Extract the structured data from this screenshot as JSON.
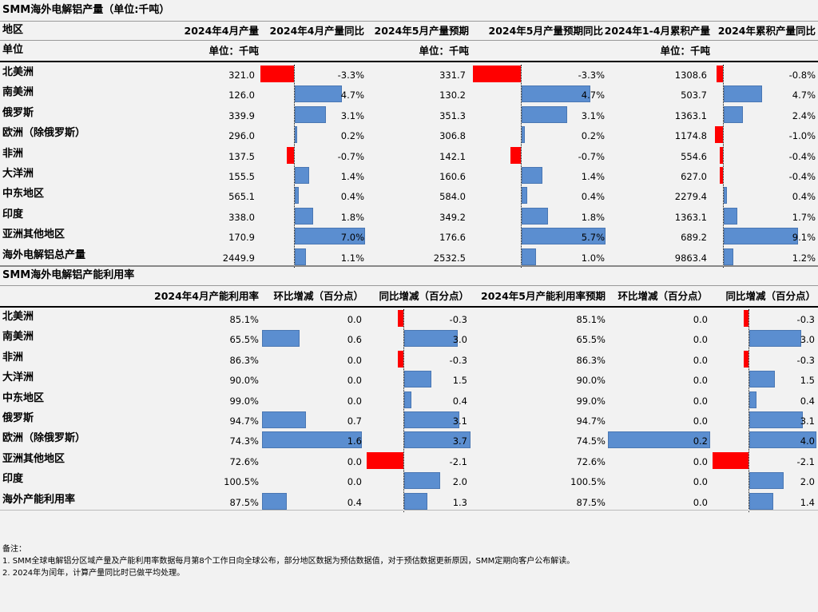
{
  "title1": "SMM海外电解铝产量（单位:千吨）",
  "header1": {
    "region": "地区",
    "c1": "2024年4月产量",
    "c2": "2024年4月产量同比",
    "c3": "2024年5月产量预期",
    "c4": "2024年5月产量预期同比",
    "c5": "2024年1-4月累积产量",
    "c6": "2024年累积产量同比"
  },
  "unit_row": {
    "label": "单位",
    "u1": "单位：千吨",
    "u3": "单位：千吨",
    "u5": "单位：千吨"
  },
  "table1": [
    {
      "region": "北美洲",
      "apr": "321.0",
      "apr_yoy": "-3.3%",
      "apr_yoy_v": -3.3,
      "may": "331.7",
      "may_yoy": "-3.3%",
      "may_yoy_v": -3.3,
      "cum": "1308.6",
      "cum_yoy": "-0.8%",
      "cum_yoy_v": -0.8
    },
    {
      "region": "南美洲",
      "apr": "126.0",
      "apr_yoy": "4.7%",
      "apr_yoy_v": 4.7,
      "may": "130.2",
      "may_yoy": "4.7%",
      "may_yoy_v": 4.7,
      "cum": "503.7",
      "cum_yoy": "4.7%",
      "cum_yoy_v": 4.7
    },
    {
      "region": "俄罗斯",
      "apr": "339.9",
      "apr_yoy": "3.1%",
      "apr_yoy_v": 3.1,
      "may": "351.3",
      "may_yoy": "3.1%",
      "may_yoy_v": 3.1,
      "cum": "1363.1",
      "cum_yoy": "2.4%",
      "cum_yoy_v": 2.4
    },
    {
      "region": "欧洲（除俄罗斯）",
      "apr": "296.0",
      "apr_yoy": "0.2%",
      "apr_yoy_v": 0.2,
      "may": "306.8",
      "may_yoy": "0.2%",
      "may_yoy_v": 0.2,
      "cum": "1174.8",
      "cum_yoy": "-1.0%",
      "cum_yoy_v": -1.0
    },
    {
      "region": "非洲",
      "apr": "137.5",
      "apr_yoy": "-0.7%",
      "apr_yoy_v": -0.7,
      "may": "142.1",
      "may_yoy": "-0.7%",
      "may_yoy_v": -0.7,
      "cum": "554.6",
      "cum_yoy": "-0.4%",
      "cum_yoy_v": -0.4
    },
    {
      "region": "大洋洲",
      "apr": "155.5",
      "apr_yoy": "1.4%",
      "apr_yoy_v": 1.4,
      "may": "160.6",
      "may_yoy": "1.4%",
      "may_yoy_v": 1.4,
      "cum": "627.0",
      "cum_yoy": "-0.4%",
      "cum_yoy_v": -0.4
    },
    {
      "region": "中东地区",
      "apr": "565.1",
      "apr_yoy": "0.4%",
      "apr_yoy_v": 0.4,
      "may": "584.0",
      "may_yoy": "0.4%",
      "may_yoy_v": 0.4,
      "cum": "2279.4",
      "cum_yoy": "0.4%",
      "cum_yoy_v": 0.4
    },
    {
      "region": "印度",
      "apr": "338.0",
      "apr_yoy": "1.8%",
      "apr_yoy_v": 1.8,
      "may": "349.2",
      "may_yoy": "1.8%",
      "may_yoy_v": 1.8,
      "cum": "1363.1",
      "cum_yoy": "1.7%",
      "cum_yoy_v": 1.7
    },
    {
      "region": "亚洲其他地区",
      "apr": "170.9",
      "apr_yoy": "7.0%",
      "apr_yoy_v": 7.0,
      "may": "176.6",
      "may_yoy": "5.7%",
      "may_yoy_v": 5.7,
      "cum": "689.2",
      "cum_yoy": "9.1%",
      "cum_yoy_v": 9.1
    },
    {
      "region": "海外电解铝总产量",
      "apr": "2449.9",
      "apr_yoy": "1.1%",
      "apr_yoy_v": 1.1,
      "may": "2532.5",
      "may_yoy": "1.0%",
      "may_yoy_v": 1.0,
      "cum": "9863.4",
      "cum_yoy": "1.2%",
      "cum_yoy_v": 1.2
    }
  ],
  "title2": "SMM海外电解铝产能利用率",
  "header2": {
    "c1": "2024年4月产能利用率",
    "c2": "环比增减（百分点）",
    "c3": "同比增减（百分点）",
    "c4": "2024年5月产能利用率预期",
    "c5": "环比增减（百分点）",
    "c6": "同比增减（百分点）"
  },
  "table2": [
    {
      "region": "北美洲",
      "apr": "85.1%",
      "apr_mom": "0.0",
      "apr_mom_v": 0.0,
      "apr_yoy": "-0.3",
      "apr_yoy_v": -0.3,
      "may": "85.1%",
      "may_mom": "0.0",
      "may_mom_v": 0.0,
      "may_yoy": "-0.3",
      "may_yoy_v": -0.3
    },
    {
      "region": "南美洲",
      "apr": "65.5%",
      "apr_mom": "0.6",
      "apr_mom_v": 0.6,
      "apr_yoy": "3.0",
      "apr_yoy_v": 3.0,
      "may": "65.5%",
      "may_mom": "0.0",
      "may_mom_v": 0.0,
      "may_yoy": "3.0",
      "may_yoy_v": 3.0
    },
    {
      "region": "非洲",
      "apr": "86.3%",
      "apr_mom": "0.0",
      "apr_mom_v": 0.0,
      "apr_yoy": "-0.3",
      "apr_yoy_v": -0.3,
      "may": "86.3%",
      "may_mom": "0.0",
      "may_mom_v": 0.0,
      "may_yoy": "-0.3",
      "may_yoy_v": -0.3
    },
    {
      "region": "大洋洲",
      "apr": "90.0%",
      "apr_mom": "0.0",
      "apr_mom_v": 0.0,
      "apr_yoy": "1.5",
      "apr_yoy_v": 1.5,
      "may": "90.0%",
      "may_mom": "0.0",
      "may_mom_v": 0.0,
      "may_yoy": "1.5",
      "may_yoy_v": 1.5
    },
    {
      "region": "中东地区",
      "apr": "99.0%",
      "apr_mom": "0.0",
      "apr_mom_v": 0.0,
      "apr_yoy": "0.4",
      "apr_yoy_v": 0.4,
      "may": "99.0%",
      "may_mom": "0.0",
      "may_mom_v": 0.0,
      "may_yoy": "0.4",
      "may_yoy_v": 0.4
    },
    {
      "region": "俄罗斯",
      "apr": "94.7%",
      "apr_mom": "0.7",
      "apr_mom_v": 0.7,
      "apr_yoy": "3.1",
      "apr_yoy_v": 3.1,
      "may": "94.7%",
      "may_mom": "0.0",
      "may_mom_v": 0.0,
      "may_yoy": "3.1",
      "may_yoy_v": 3.1
    },
    {
      "region": "欧洲（除俄罗斯）",
      "apr": "74.3%",
      "apr_mom": "1.6",
      "apr_mom_v": 1.6,
      "apr_yoy": "3.7",
      "apr_yoy_v": 3.7,
      "may": "74.5%",
      "may_mom": "0.2",
      "may_mom_v": 0.2,
      "may_yoy": "4.0",
      "may_yoy_v": 4.0
    },
    {
      "region": "亚洲其他地区",
      "apr": "72.6%",
      "apr_mom": "0.0",
      "apr_mom_v": 0.0,
      "apr_yoy": "-2.1",
      "apr_yoy_v": -2.1,
      "may": "72.6%",
      "may_mom": "0.0",
      "may_mom_v": 0.0,
      "may_yoy": "-2.1",
      "may_yoy_v": -2.1
    },
    {
      "region": "印度",
      "apr": "100.5%",
      "apr_mom": "0.0",
      "apr_mom_v": 0.0,
      "apr_yoy": "2.0",
      "apr_yoy_v": 2.0,
      "may": "100.5%",
      "may_mom": "0.0",
      "may_mom_v": 0.0,
      "may_yoy": "2.0",
      "may_yoy_v": 2.0
    },
    {
      "region": "海外产能利用率",
      "apr": "87.5%",
      "apr_mom": "0.4",
      "apr_mom_v": 0.4,
      "apr_yoy": "1.3",
      "apr_yoy_v": 1.3,
      "may": "87.5%",
      "may_mom": "0.0",
      "may_mom_v": 0.0,
      "may_yoy": "1.4",
      "may_yoy_v": 1.4
    }
  ],
  "notes": {
    "title": "备注：",
    "n1": "1. SMM全球电解铝分区域产量及产能利用率数据每月第8个工作日向全球公布，部分地区数据为预估数据值，对于预估数据更新原因，SMM定期向客户公布解读。",
    "n2": "2. 2024年为闰年，计算产量同比时已做平均处理。"
  },
  "colors": {
    "positive": "#5b8ed0",
    "negative": "#ff0000",
    "background": "#f2f2f2"
  }
}
